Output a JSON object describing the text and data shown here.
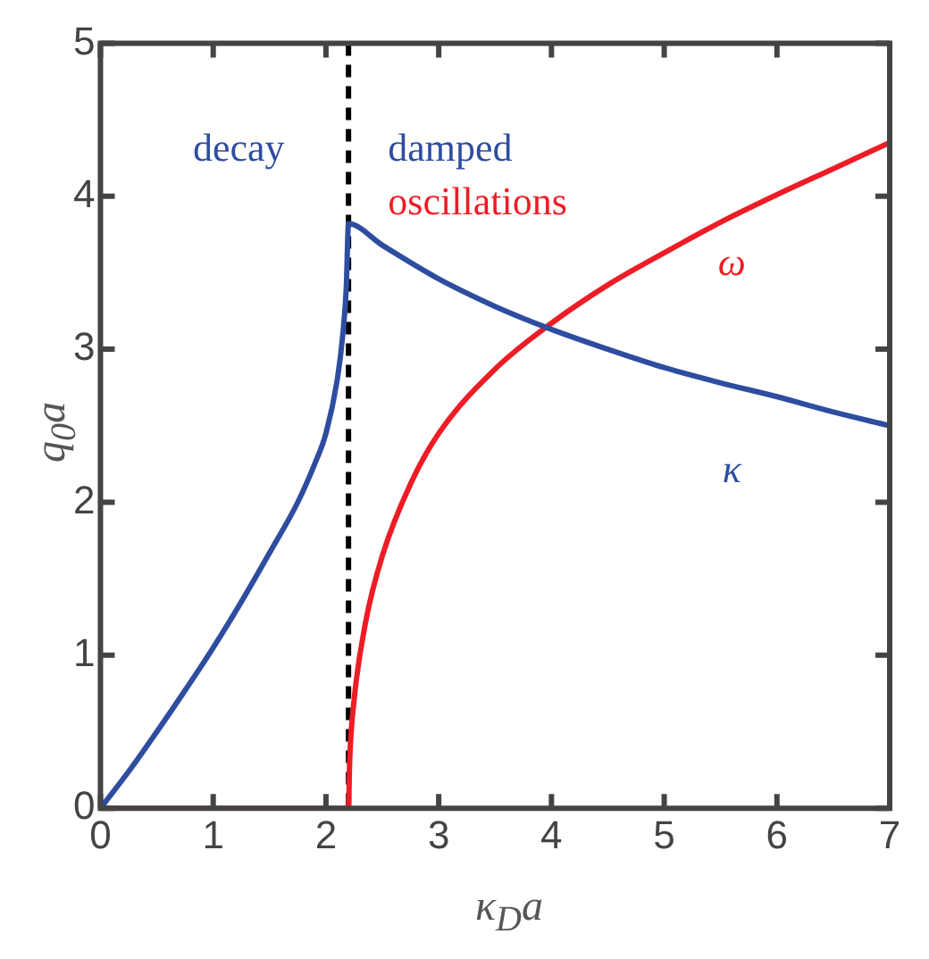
{
  "chart_data": {
    "type": "line",
    "xlabel": "κ$_{D}$a",
    "ylabel": "q$_{0}$a",
    "xlim": [
      0,
      7
    ],
    "xticks": [
      0,
      1,
      2,
      3,
      4,
      5,
      6,
      7
    ],
    "ylim": [
      0,
      5
    ],
    "yticks": [
      0,
      1,
      2,
      3,
      4,
      5
    ],
    "series": [
      {
        "name": "κ",
        "color": "#2e4da0",
        "x": [
          0,
          0.25,
          0.5,
          0.75,
          1,
          1.25,
          1.5,
          1.75,
          1.9,
          2.0,
          2.1,
          2.15,
          2.18,
          2.2,
          2.5,
          3,
          3.5,
          4,
          4.5,
          5,
          5.5,
          6,
          6.5,
          7
        ],
        "values": [
          0,
          0.24,
          0.5,
          0.77,
          1.05,
          1.35,
          1.67,
          2.0,
          2.25,
          2.45,
          2.8,
          3.1,
          3.4,
          3.82,
          3.68,
          3.46,
          3.28,
          3.13,
          3.0,
          2.88,
          2.78,
          2.69,
          2.59,
          2.5
        ]
      },
      {
        "name": "ω",
        "color": "#ee1c25",
        "x": [
          0,
          2.2,
          2.21,
          2.25,
          2.35,
          2.5,
          2.75,
          3,
          3.5,
          4,
          4.5,
          5,
          5.5,
          6,
          6.5,
          7
        ],
        "values": [
          0,
          0,
          0.3,
          0.71,
          1.21,
          1.65,
          2.12,
          2.45,
          2.87,
          3.17,
          3.42,
          3.63,
          3.83,
          4.01,
          4.18,
          4.35
        ]
      }
    ],
    "ref_lines": [
      {
        "axis": "x",
        "value": 2.2,
        "color": "#000000",
        "line_style": "dashed"
      }
    ],
    "annotations": [
      "decay",
      "damped",
      "oscillations"
    ],
    "marker": "none",
    "line_style": "solid",
    "legend": false
  }
}
